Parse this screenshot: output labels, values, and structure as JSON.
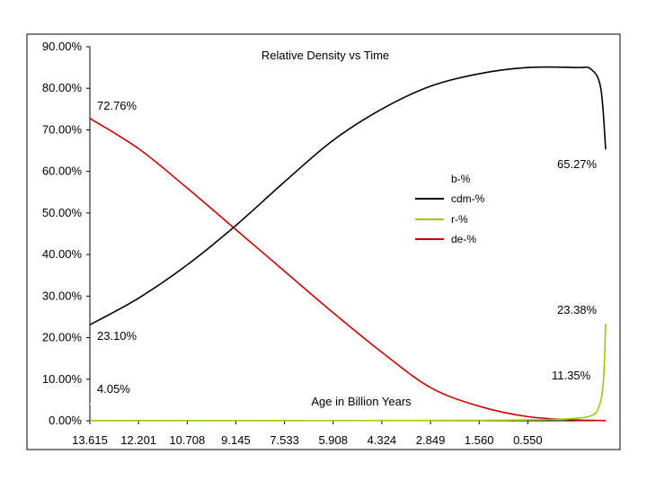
{
  "chart_data": {
    "type": "line",
    "title": "Relative Density vs Time",
    "xlabel": "Age in Billion Years",
    "ylabel": "",
    "x_tick_labels": [
      "13.615",
      "12.201",
      "10.708",
      "9.145",
      "7.533",
      "5.908",
      "4.324",
      "2.849",
      "1.560",
      "0.550"
    ],
    "ylim": [
      0,
      0.9
    ],
    "y_tick_labels": [
      "0.00%",
      "10.00%",
      "20.00%",
      "30.00%",
      "40.00%",
      "50.00%",
      "60.00%",
      "70.00%",
      "80.00%",
      "90.00%"
    ],
    "grid": false,
    "legend_placement": "center-right",
    "x_position_domain": [
      0,
      10.6
    ],
    "series": [
      {
        "name": "b-%",
        "color": "#ffffff",
        "x": [
          0,
          10.6
        ],
        "y": [
          0.0405,
          0.1135
        ]
      },
      {
        "name": "cdm-%",
        "color": "#000000",
        "x": [
          0,
          1,
          2,
          3,
          4,
          5,
          6,
          7,
          8,
          9,
          10,
          10.3,
          10.5,
          10.6
        ],
        "y": [
          0.231,
          0.295,
          0.375,
          0.47,
          0.575,
          0.675,
          0.75,
          0.805,
          0.835,
          0.85,
          0.85,
          0.846,
          0.8,
          0.6527
        ]
      },
      {
        "name": "r-%",
        "color": "#99cc00",
        "x": [
          0,
          2,
          4,
          6,
          8,
          9,
          9.5,
          10,
          10.3,
          10.45,
          10.55,
          10.6
        ],
        "y": [
          0.0005,
          0.0005,
          0.0005,
          0.0006,
          0.001,
          0.002,
          0.003,
          0.006,
          0.012,
          0.03,
          0.09,
          0.2338
        ]
      },
      {
        "name": "de-%",
        "color": "#cc0000",
        "x": [
          0,
          1,
          2,
          3,
          4,
          5,
          6,
          7,
          8,
          9,
          10,
          10.6
        ],
        "y": [
          0.7276,
          0.655,
          0.56,
          0.46,
          0.36,
          0.26,
          0.165,
          0.08,
          0.035,
          0.01,
          0.002,
          0.0005
        ]
      }
    ],
    "annotations": [
      "72.76%",
      "23.10%",
      "4.05%",
      "65.27%",
      "23.38%",
      "11.35%"
    ]
  }
}
